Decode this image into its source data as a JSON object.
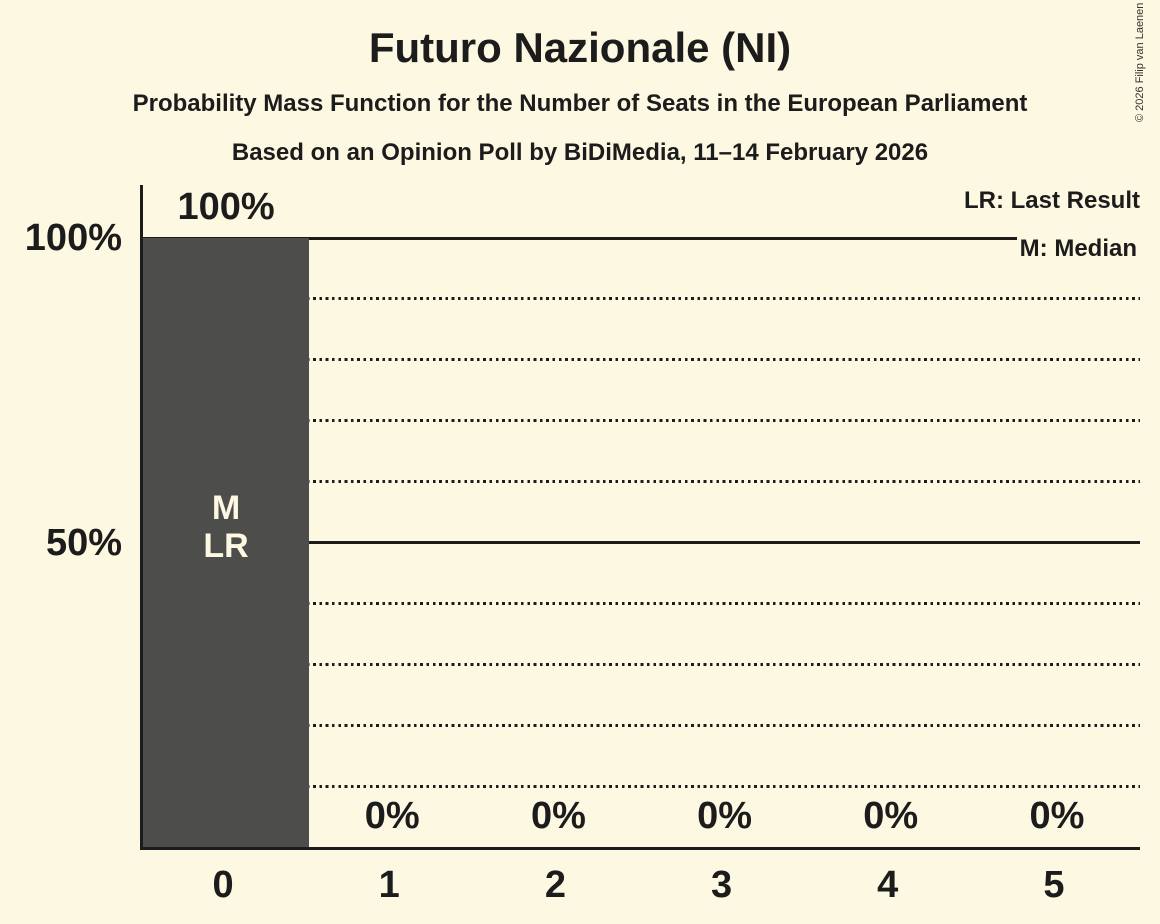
{
  "page": {
    "background": "#FDF8E1",
    "text_color": "#1C1C1C"
  },
  "header": {
    "title": "Futuro Nazionale (NI)",
    "subtitle1": "Probability Mass Function for the Number of Seats in the European Parliament",
    "subtitle2": "Based on an Opinion Poll by BiDiMedia, 11–14 February 2026"
  },
  "legend": {
    "lr": "LR: Last Result",
    "m": "M: Median"
  },
  "copyright": "© 2026 Filip van Laenen",
  "chart_data": {
    "type": "bar",
    "title": "Futuro Nazionale (NI)",
    "categories": [
      "0",
      "1",
      "2",
      "3",
      "4",
      "5"
    ],
    "values": [
      100,
      0,
      0,
      0,
      0,
      0
    ],
    "value_labels": [
      "100%",
      "0%",
      "0%",
      "0%",
      "0%",
      "0%"
    ],
    "annotations": [
      [
        "M",
        "LR"
      ],
      [],
      [],
      [],
      [],
      []
    ],
    "xlabel": "",
    "ylabel": "",
    "ylim": [
      0,
      100
    ],
    "yticks": [
      {
        "value": 100,
        "label": "100%"
      },
      {
        "value": 50,
        "label": "50%"
      }
    ],
    "solid_gridlines": [
      100,
      50
    ],
    "dotted_gridlines": [
      90,
      80,
      70,
      60,
      40,
      30,
      20,
      10
    ],
    "legend_entries": [
      "LR: Last Result",
      "M: Median"
    ],
    "legend_position": "top-right",
    "grid": "horizontal-only",
    "colors": {
      "bar": "#4D4D4B",
      "annotation": "#FDF8E1",
      "axis": "#1C1C1C",
      "background": "#FDF8E1"
    }
  }
}
